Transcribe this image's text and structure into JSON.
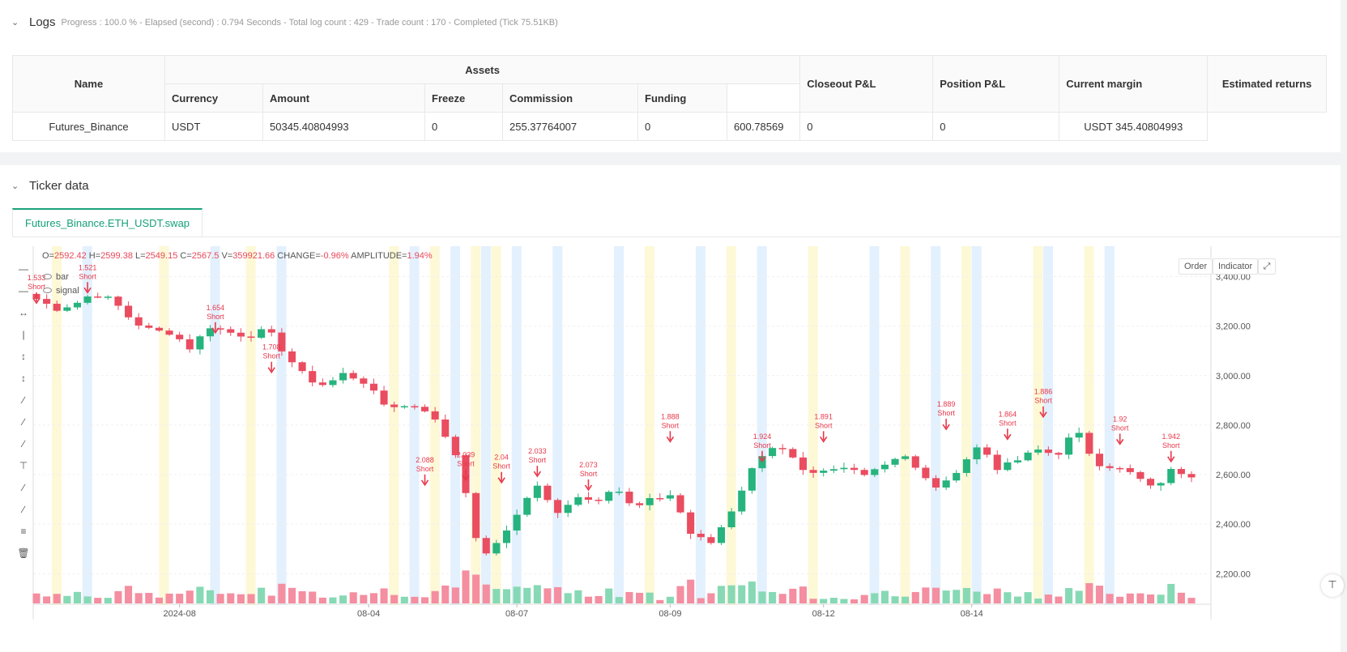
{
  "logs": {
    "title": "Logs",
    "meta": "Progress : 100.0 % - Elapsed (second) : 0.794  Seconds - Total log count : 429 - Trade count : 170 - Completed (Tick 75.51KB)",
    "table": {
      "headers": {
        "name": "Name",
        "assets": "Assets",
        "currency": "Currency",
        "amount": "Amount",
        "freeze": "Freeze",
        "commission": "Commission",
        "funding": "Funding",
        "closeout": "Closeout P&L",
        "position": "Position P&L",
        "margin": "Current margin",
        "returns": "Estimated returns"
      },
      "row": {
        "name": "Futures_Binance",
        "currency": "USDT",
        "amount": "50345.40804993",
        "freeze": "0",
        "commission": "255.37764007",
        "funding": "0",
        "closeout": "600.78569",
        "position": "0",
        "margin": "0",
        "returns": "USDT 345.40804993"
      }
    }
  },
  "ticker": {
    "title": "Ticker data",
    "tab": "Futures_Binance.ETH_USDT.swap",
    "buttons": {
      "order": "Order",
      "indicator": "Indicator"
    },
    "ohlc": {
      "o": "2592.42",
      "h": "2599.38",
      "l": "2549.15",
      "c": "2567.5",
      "v": "359921.66",
      "change": "-0.96%",
      "amplitude": "1.94%"
    },
    "legend": [
      "bar",
      "signal"
    ],
    "tools": [
      "horizontal-line-icon",
      "horizontal-ray-icon",
      "horizontal-segment-icon",
      "vertical-line-icon",
      "vertical-ray-icon",
      "vertical-segment-icon",
      "trend-line-icon",
      "ray-line-icon",
      "segment-icon",
      "price-label-icon",
      "parallel-channel-icon",
      "fib-channel-icon",
      "fib-retracement-icon",
      "trash-icon"
    ]
  },
  "chart_data": {
    "type": "candlestick",
    "symbol": "ETH_USDT",
    "yticks": [
      "2,200.00",
      "2,400.00",
      "2,600.00",
      "2,800.00",
      "3,000.00",
      "3,200.00",
      "3,400.00"
    ],
    "ylim": [
      2080,
      3490
    ],
    "xticks": [
      "2024-08",
      "08-04",
      "08-07",
      "08-09",
      "08-12",
      "08-14"
    ],
    "colors": {
      "up": "#26b37d",
      "down": "#ea4c60",
      "signal": "#e8384b",
      "band_blue": "#e3f0fd",
      "band_yellow": "#fdf8d6"
    },
    "anchors": [
      3310,
      3270,
      3290,
      3335,
      3300,
      3220,
      3180,
      3175,
      3110,
      3200,
      3175,
      3160,
      3185,
      3080,
      2990,
      2960,
      3010,
      2975,
      2885,
      2875,
      2880,
      2790,
      2650,
      2270,
      2320,
      2450,
      2560,
      2435,
      2520,
      2490,
      2560,
      2460,
      2500,
      2520,
      2360,
      2320,
      2440,
      2600,
      2720,
      2690,
      2590,
      2610,
      2625,
      2610,
      2640,
      2690,
      2590,
      2540,
      2640,
      2720,
      2620,
      2660,
      2700,
      2680,
      2780,
      2650,
      2630,
      2600,
      2540,
      2620,
      2600
    ],
    "bands": [
      {
        "x": 2,
        "c": "yellow"
      },
      {
        "x": 5,
        "c": "blue"
      },
      {
        "x": 12.5,
        "c": "yellow"
      },
      {
        "x": 17.5,
        "c": "blue"
      },
      {
        "x": 21,
        "c": "yellow"
      },
      {
        "x": 24,
        "c": "blue"
      },
      {
        "x": 35,
        "c": "yellow"
      },
      {
        "x": 37,
        "c": "blue"
      },
      {
        "x": 39,
        "c": "yellow"
      },
      {
        "x": 41,
        "c": "blue"
      },
      {
        "x": 43,
        "c": "yellow"
      },
      {
        "x": 44,
        "c": "blue"
      },
      {
        "x": 45,
        "c": "yellow"
      },
      {
        "x": 47,
        "c": "blue"
      },
      {
        "x": 51,
        "c": "blue"
      },
      {
        "x": 57,
        "c": "blue"
      },
      {
        "x": 60,
        "c": "yellow"
      },
      {
        "x": 65,
        "c": "blue"
      },
      {
        "x": 68,
        "c": "yellow"
      },
      {
        "x": 71,
        "c": "blue"
      },
      {
        "x": 76,
        "c": "yellow"
      },
      {
        "x": 82,
        "c": "blue"
      },
      {
        "x": 85,
        "c": "yellow"
      },
      {
        "x": 88,
        "c": "blue"
      },
      {
        "x": 91,
        "c": "yellow"
      },
      {
        "x": 92,
        "c": "blue"
      },
      {
        "x": 98,
        "c": "yellow"
      },
      {
        "x": 99,
        "c": "blue"
      },
      {
        "x": 103,
        "c": "yellow"
      },
      {
        "x": 105,
        "c": "blue"
      }
    ],
    "signals": [
      {
        "x": 0,
        "value": "1.533",
        "label": "Short",
        "price": 3290
      },
      {
        "x": 5,
        "value": "1.521",
        "label": "Short",
        "price": 3332
      },
      {
        "x": 17.5,
        "value": "1.654",
        "label": "Short",
        "price": 3170
      },
      {
        "x": 23,
        "value": "1.708",
        "label": "Short",
        "price": 3010
      },
      {
        "x": 38,
        "value": "2.088",
        "label": "Short",
        "price": 2555
      },
      {
        "x": 42,
        "value": "2.039",
        "label": "Short",
        "price": 2575
      },
      {
        "x": 45.5,
        "value": "2.04",
        "label": "Short",
        "price": 2565
      },
      {
        "x": 49,
        "value": "2.033",
        "label": "Short",
        "price": 2590
      },
      {
        "x": 54,
        "value": "2.073",
        "label": "Short",
        "price": 2535
      },
      {
        "x": 62,
        "value": "1.888",
        "label": "Short",
        "price": 2730
      },
      {
        "x": 71,
        "value": "1.924",
        "label": "Short",
        "price": 2650
      },
      {
        "x": 77,
        "value": "1.891",
        "label": "Short",
        "price": 2730
      },
      {
        "x": 89,
        "value": "1.889",
        "label": "Short",
        "price": 2780
      },
      {
        "x": 95,
        "value": "1.864",
        "label": "Short",
        "price": 2740
      },
      {
        "x": 98.5,
        "value": "1.886",
        "label": "Short",
        "price": 2830
      },
      {
        "x": 106,
        "value": "1.92",
        "label": "Short",
        "price": 2720
      },
      {
        "x": 111,
        "value": "1.942",
        "label": "Short",
        "price": 2650
      }
    ]
  }
}
